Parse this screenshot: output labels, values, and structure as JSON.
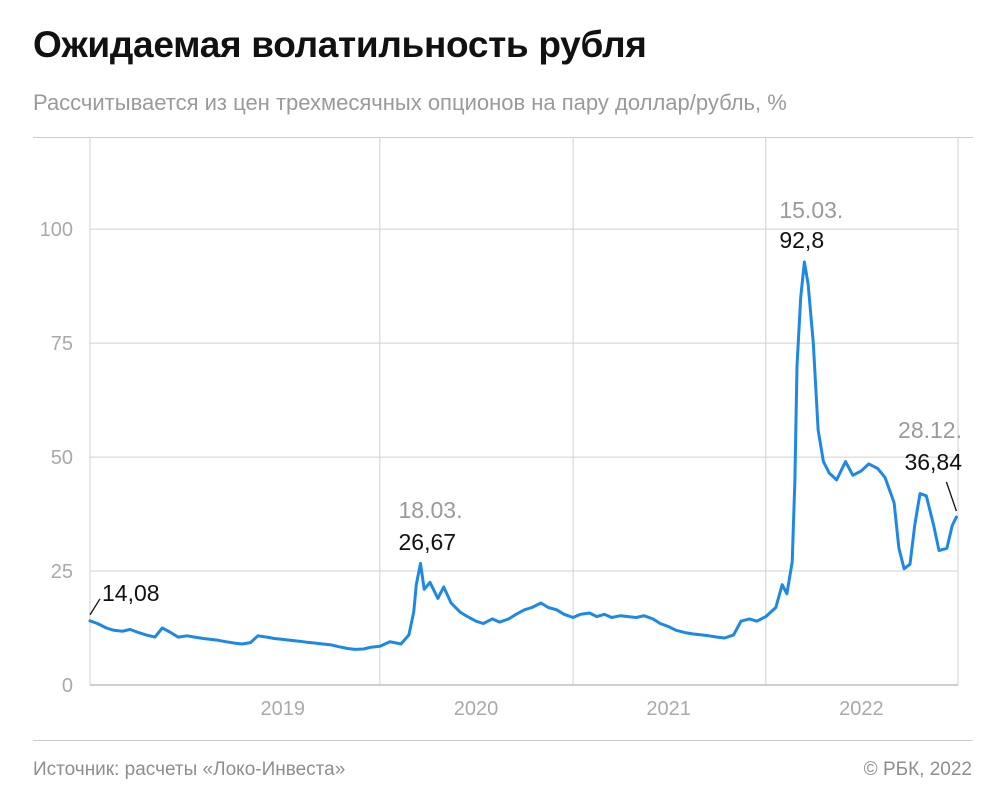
{
  "header": {
    "title": "Ожидаемая волатильность рубля",
    "subtitle": "Рассчитывается из цен трехмесячных опционов на пару доллар/рубль, %"
  },
  "footer": {
    "source": "Источник: расчеты «Локо-Инвеста»",
    "copyright": "© РБК, 2022"
  },
  "colors": {
    "line": "#1e88e5",
    "grid": "#d0d0d0",
    "axis": "#bdbdbd"
  },
  "chart_data": {
    "type": "line",
    "title": "Ожидаемая волатильность рубля",
    "subtitle": "Рассчитывается из цен трехмесячных опционов на пару доллар/рубль, %",
    "xlabel": "",
    "ylabel": "",
    "x_range": [
      "2018-07-01",
      "2022-12-31"
    ],
    "ylim": [
      0,
      120
    ],
    "y_ticks": [
      0,
      25,
      50,
      75,
      100
    ],
    "y_tick_labels": [
      "0",
      "25",
      "50",
      "75",
      "100"
    ],
    "x_year_labels": [
      {
        "label": "2019",
        "date": "2019-07-01"
      },
      {
        "label": "2020",
        "date": "2020-07-01"
      },
      {
        "label": "2021",
        "date": "2021-07-01"
      },
      {
        "label": "2022",
        "date": "2022-07-01"
      }
    ],
    "x_gridlines": [
      "2020-01-01",
      "2021-01-01",
      "2022-01-01"
    ],
    "grid": true,
    "legend": "none",
    "series": [
      {
        "name": "",
        "color": "#1e88e5",
        "points": [
          [
            "2018-07-01",
            14.08
          ],
          [
            "2018-07-15",
            13.5
          ],
          [
            "2018-08-01",
            12.5
          ],
          [
            "2018-08-15",
            12.0
          ],
          [
            "2018-09-01",
            11.8
          ],
          [
            "2018-09-15",
            12.2
          ],
          [
            "2018-10-01",
            11.5
          ],
          [
            "2018-10-15",
            11.0
          ],
          [
            "2018-11-01",
            10.5
          ],
          [
            "2018-11-15",
            12.5
          ],
          [
            "2018-12-01",
            11.5
          ],
          [
            "2018-12-15",
            10.5
          ],
          [
            "2019-01-01",
            10.8
          ],
          [
            "2019-01-15",
            10.5
          ],
          [
            "2019-02-01",
            10.2
          ],
          [
            "2019-02-15",
            10.0
          ],
          [
            "2019-03-01",
            9.8
          ],
          [
            "2019-03-15",
            9.5
          ],
          [
            "2019-04-01",
            9.2
          ],
          [
            "2019-04-15",
            9.0
          ],
          [
            "2019-05-01",
            9.3
          ],
          [
            "2019-05-15",
            10.8
          ],
          [
            "2019-06-01",
            10.5
          ],
          [
            "2019-06-15",
            10.2
          ],
          [
            "2019-07-01",
            10.0
          ],
          [
            "2019-07-15",
            9.8
          ],
          [
            "2019-08-01",
            9.6
          ],
          [
            "2019-08-15",
            9.4
          ],
          [
            "2019-09-01",
            9.2
          ],
          [
            "2019-09-15",
            9.0
          ],
          [
            "2019-10-01",
            8.8
          ],
          [
            "2019-10-15",
            8.4
          ],
          [
            "2019-11-01",
            8.0
          ],
          [
            "2019-11-15",
            7.8
          ],
          [
            "2019-12-01",
            7.9
          ],
          [
            "2019-12-15",
            8.3
          ],
          [
            "2020-01-01",
            8.5
          ],
          [
            "2020-01-20",
            9.5
          ],
          [
            "2020-02-10",
            9.0
          ],
          [
            "2020-02-25",
            11.0
          ],
          [
            "2020-03-05",
            16.0
          ],
          [
            "2020-03-10",
            22.0
          ],
          [
            "2020-03-18",
            26.67
          ],
          [
            "2020-03-25",
            21.0
          ],
          [
            "2020-04-05",
            22.5
          ],
          [
            "2020-04-20",
            19.0
          ],
          [
            "2020-05-01",
            21.5
          ],
          [
            "2020-05-15",
            18.0
          ],
          [
            "2020-06-01",
            16.0
          ],
          [
            "2020-06-15",
            15.0
          ],
          [
            "2020-07-01",
            14.0
          ],
          [
            "2020-07-15",
            13.5
          ],
          [
            "2020-08-01",
            14.5
          ],
          [
            "2020-08-15",
            13.8
          ],
          [
            "2020-09-01",
            14.5
          ],
          [
            "2020-09-15",
            15.5
          ],
          [
            "2020-10-01",
            16.5
          ],
          [
            "2020-10-15",
            17.0
          ],
          [
            "2020-11-01",
            18.0
          ],
          [
            "2020-11-15",
            17.0
          ],
          [
            "2020-12-01",
            16.5
          ],
          [
            "2020-12-15",
            15.5
          ],
          [
            "2021-01-01",
            14.8
          ],
          [
            "2021-01-15",
            15.5
          ],
          [
            "2021-02-01",
            15.8
          ],
          [
            "2021-02-15",
            15.0
          ],
          [
            "2021-03-01",
            15.5
          ],
          [
            "2021-03-15",
            14.8
          ],
          [
            "2021-04-01",
            15.2
          ],
          [
            "2021-04-15",
            15.0
          ],
          [
            "2021-05-01",
            14.8
          ],
          [
            "2021-05-15",
            15.2
          ],
          [
            "2021-06-01",
            14.5
          ],
          [
            "2021-06-15",
            13.5
          ],
          [
            "2021-07-01",
            12.8
          ],
          [
            "2021-07-15",
            12.0
          ],
          [
            "2021-08-01",
            11.5
          ],
          [
            "2021-08-15",
            11.2
          ],
          [
            "2021-09-01",
            11.0
          ],
          [
            "2021-09-15",
            10.8
          ],
          [
            "2021-10-01",
            10.5
          ],
          [
            "2021-10-15",
            10.3
          ],
          [
            "2021-11-01",
            11.0
          ],
          [
            "2021-11-15",
            14.0
          ],
          [
            "2021-12-01",
            14.5
          ],
          [
            "2021-12-15",
            14.0
          ],
          [
            "2022-01-01",
            15.0
          ],
          [
            "2022-01-20",
            17.0
          ],
          [
            "2022-02-01",
            22.0
          ],
          [
            "2022-02-10",
            20.0
          ],
          [
            "2022-02-20",
            27.0
          ],
          [
            "2022-02-25",
            45.0
          ],
          [
            "2022-03-01",
            70.0
          ],
          [
            "2022-03-08",
            85.0
          ],
          [
            "2022-03-15",
            92.8
          ],
          [
            "2022-03-22",
            88.0
          ],
          [
            "2022-04-01",
            75.0
          ],
          [
            "2022-04-10",
            56.0
          ],
          [
            "2022-04-20",
            49.0
          ],
          [
            "2022-05-01",
            46.5
          ],
          [
            "2022-05-15",
            45.0
          ],
          [
            "2022-06-01",
            49.0
          ],
          [
            "2022-06-15",
            46.0
          ],
          [
            "2022-07-01",
            47.0
          ],
          [
            "2022-07-15",
            48.5
          ],
          [
            "2022-08-01",
            47.5
          ],
          [
            "2022-08-15",
            45.5
          ],
          [
            "2022-09-01",
            40.0
          ],
          [
            "2022-09-10",
            30.0
          ],
          [
            "2022-09-20",
            25.5
          ],
          [
            "2022-10-01",
            26.5
          ],
          [
            "2022-10-10",
            35.0
          ],
          [
            "2022-10-20",
            42.0
          ],
          [
            "2022-11-01",
            41.5
          ],
          [
            "2022-11-15",
            35.0
          ],
          [
            "2022-11-25",
            29.5
          ],
          [
            "2022-12-10",
            30.0
          ],
          [
            "2022-12-20",
            35.0
          ],
          [
            "2022-12-28",
            36.84
          ]
        ]
      }
    ],
    "annotations": [
      {
        "date_label": "",
        "value_label": "14,08",
        "x": "2018-07-01",
        "y": 14.08
      },
      {
        "date_label": "18.03.",
        "value_label": "26,67",
        "x": "2020-03-18",
        "y": 26.67
      },
      {
        "date_label": "15.03.",
        "value_label": "92,8",
        "x": "2022-03-15",
        "y": 92.8
      },
      {
        "date_label": "28.12.",
        "value_label": "36,84",
        "x": "2022-12-28",
        "y": 36.84
      }
    ]
  }
}
